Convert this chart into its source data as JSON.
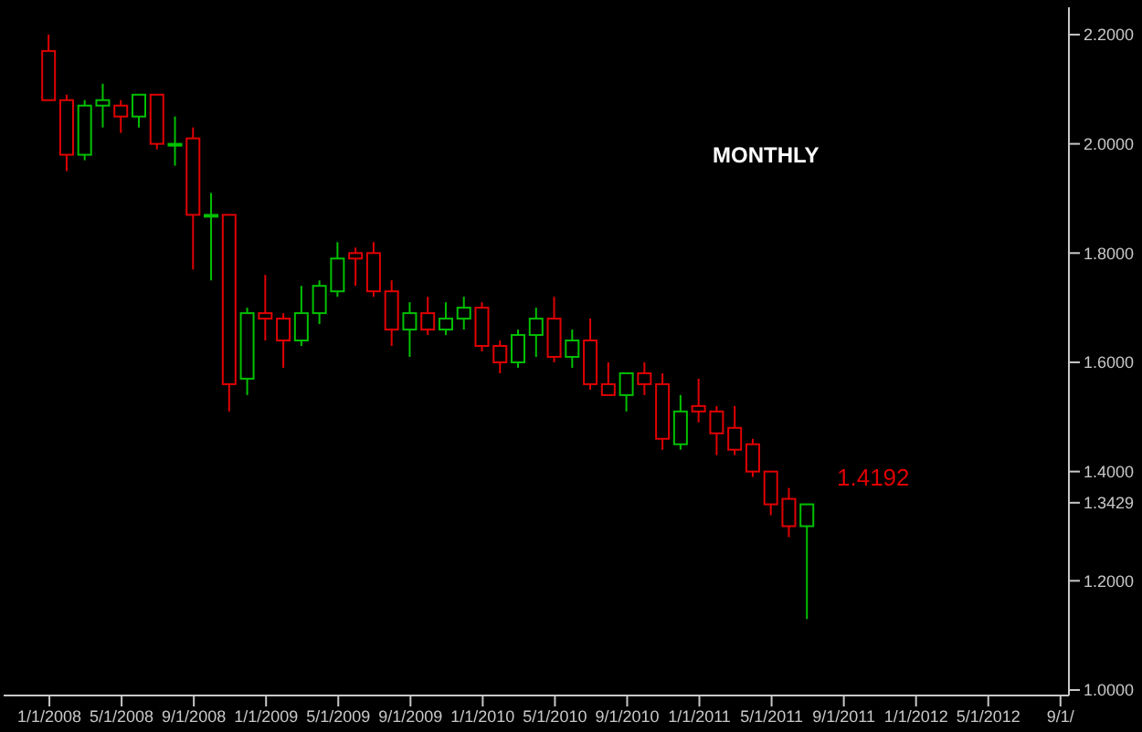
{
  "chart_data": {
    "type": "candlestick",
    "annotations": [
      "MONTHLY",
      "1.4192"
    ],
    "x": [
      "2008-01",
      "2008-02",
      "2008-03",
      "2008-04",
      "2008-05",
      "2008-06",
      "2008-07",
      "2008-08",
      "2008-09",
      "2008-10",
      "2008-11",
      "2008-12",
      "2009-01",
      "2009-02",
      "2009-03",
      "2009-04",
      "2009-05",
      "2009-06",
      "2009-07",
      "2009-08",
      "2009-09",
      "2009-10",
      "2009-11",
      "2009-12",
      "2010-01",
      "2010-02",
      "2010-03",
      "2010-04",
      "2010-05",
      "2010-06",
      "2010-07",
      "2010-08",
      "2010-09",
      "2010-10",
      "2010-11",
      "2010-12",
      "2011-01",
      "2011-02",
      "2011-03",
      "2011-04",
      "2011-05",
      "2011-06",
      "2011-07"
    ],
    "ohlc": [
      [
        2.17,
        2.2,
        2.08,
        2.08
      ],
      [
        2.08,
        2.09,
        1.95,
        1.98
      ],
      [
        1.98,
        2.08,
        1.97,
        2.07
      ],
      [
        2.07,
        2.11,
        2.03,
        2.08
      ],
      [
        2.07,
        2.08,
        2.02,
        2.05
      ],
      [
        2.05,
        2.09,
        2.03,
        2.09
      ],
      [
        2.09,
        2.09,
        1.99,
        2.0
      ],
      [
        2.0,
        2.05,
        1.96,
        2.0
      ],
      [
        2.01,
        2.03,
        1.77,
        1.87
      ],
      [
        1.87,
        1.91,
        1.75,
        1.87
      ],
      [
        1.87,
        1.87,
        1.51,
        1.56
      ],
      [
        1.57,
        1.7,
        1.54,
        1.69
      ],
      [
        1.69,
        1.76,
        1.64,
        1.68
      ],
      [
        1.68,
        1.69,
        1.59,
        1.64
      ],
      [
        1.64,
        1.74,
        1.63,
        1.69
      ],
      [
        1.69,
        1.75,
        1.67,
        1.74
      ],
      [
        1.73,
        1.82,
        1.72,
        1.79
      ],
      [
        1.8,
        1.81,
        1.74,
        1.79
      ],
      [
        1.8,
        1.82,
        1.72,
        1.73
      ],
      [
        1.73,
        1.75,
        1.63,
        1.66
      ],
      [
        1.66,
        1.71,
        1.61,
        1.69
      ],
      [
        1.69,
        1.72,
        1.65,
        1.66
      ],
      [
        1.66,
        1.71,
        1.65,
        1.68
      ],
      [
        1.68,
        1.72,
        1.66,
        1.7
      ],
      [
        1.7,
        1.71,
        1.62,
        1.63
      ],
      [
        1.63,
        1.64,
        1.58,
        1.6
      ],
      [
        1.6,
        1.66,
        1.59,
        1.65
      ],
      [
        1.65,
        1.7,
        1.61,
        1.68
      ],
      [
        1.68,
        1.72,
        1.6,
        1.61
      ],
      [
        1.61,
        1.66,
        1.59,
        1.64
      ],
      [
        1.64,
        1.68,
        1.55,
        1.56
      ],
      [
        1.56,
        1.6,
        1.54,
        1.54
      ],
      [
        1.54,
        1.58,
        1.51,
        1.58
      ],
      [
        1.58,
        1.6,
        1.54,
        1.56
      ],
      [
        1.56,
        1.58,
        1.44,
        1.46
      ],
      [
        1.45,
        1.54,
        1.44,
        1.51
      ],
      [
        1.52,
        1.57,
        1.49,
        1.51
      ],
      [
        1.51,
        1.52,
        1.43,
        1.47
      ],
      [
        1.48,
        1.52,
        1.43,
        1.44
      ],
      [
        1.45,
        1.46,
        1.39,
        1.4
      ],
      [
        1.4,
        1.4,
        1.32,
        1.34
      ],
      [
        1.35,
        1.37,
        1.28,
        1.3
      ],
      [
        1.3,
        1.34,
        1.13,
        1.34
      ]
    ],
    "colors": [
      "#e00000",
      "#e00000",
      "#00c000",
      "#00c000",
      "#e00000",
      "#00c000",
      "#e00000",
      "#00c000",
      "#e00000",
      "#00c000",
      "#e00000",
      "#00c000",
      "#e00000",
      "#e00000",
      "#00c000",
      "#00c000",
      "#00c000",
      "#e00000",
      "#e00000",
      "#e00000",
      "#00c000",
      "#e00000",
      "#00c000",
      "#00c000",
      "#e00000",
      "#e00000",
      "#00c000",
      "#00c000",
      "#e00000",
      "#00c000",
      "#e00000",
      "#e00000",
      "#00c000",
      "#e00000",
      "#e00000",
      "#00c000",
      "#e00000",
      "#e00000",
      "#e00000",
      "#e00000",
      "#e00000",
      "#e00000",
      "#00c000"
    ],
    "xlim": [
      "2007-10-15",
      "2012-09-15"
    ],
    "xticks": [
      {
        "value": "2008-01-01",
        "label": "1/1/2008"
      },
      {
        "value": "2008-05-01",
        "label": "5/1/2008"
      },
      {
        "value": "2008-09-01",
        "label": "9/1/2008"
      },
      {
        "value": "2009-01-01",
        "label": "1/1/2009"
      },
      {
        "value": "2009-05-01",
        "label": "5/1/2009"
      },
      {
        "value": "2009-09-01",
        "label": "9/1/2009"
      },
      {
        "value": "2010-01-01",
        "label": "1/1/2010"
      },
      {
        "value": "2010-05-01",
        "label": "5/1/2010"
      },
      {
        "value": "2010-09-01",
        "label": "9/1/2010"
      },
      {
        "value": "2011-01-01",
        "label": "1/1/2011"
      },
      {
        "value": "2011-05-01",
        "label": "5/1/2011"
      },
      {
        "value": "2011-09-01",
        "label": "9/1/2011"
      },
      {
        "value": "2012-01-01",
        "label": "1/1/2012"
      },
      {
        "value": "2012-05-01",
        "label": "5/1/2012"
      },
      {
        "value": "2012-09-01",
        "label": "9/1/"
      }
    ],
    "ylim": [
      0.99,
      2.25
    ],
    "yticks": [
      {
        "value": 1,
        "label": "1.0000"
      },
      {
        "value": 1.2,
        "label": "1.2000"
      },
      {
        "value": 1.3429,
        "label": "1.3429"
      },
      {
        "value": 1.4,
        "label": "1.4000"
      },
      {
        "value": 1.6,
        "label": "1.6000"
      },
      {
        "value": 1.8,
        "label": "1.8000"
      },
      {
        "value": 2,
        "label": "2.0000"
      },
      {
        "value": 2.2,
        "label": "2.2000"
      }
    ],
    "tick_labels": "xy"
  }
}
